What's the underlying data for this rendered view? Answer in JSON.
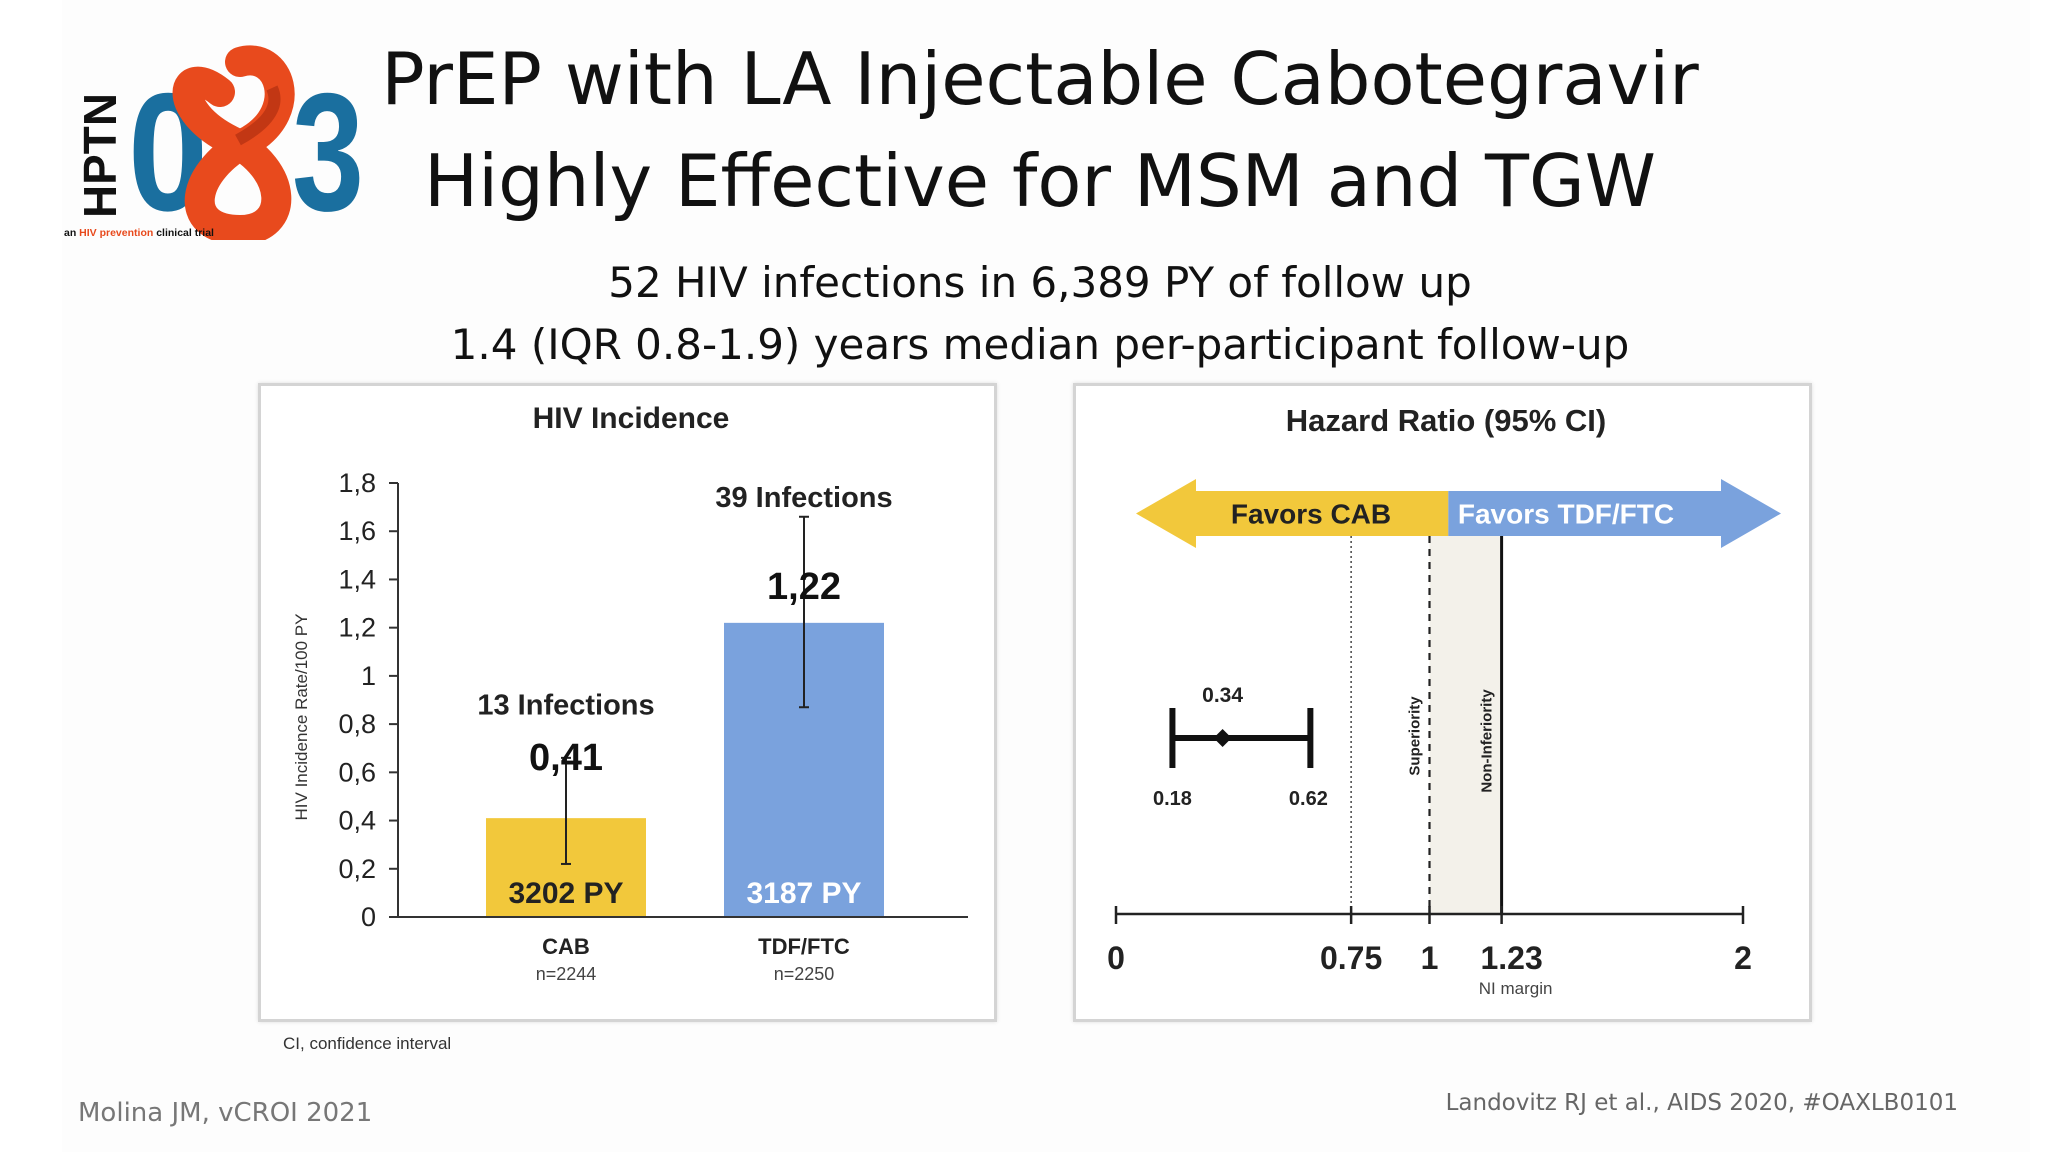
{
  "logo": {
    "text_hptn": "HPTN",
    "text_0": "0",
    "text_3": "3",
    "tagline_pre": "an ",
    "tagline_hiv": "HIV prevention",
    "tagline_post": " clinical trial"
  },
  "title": {
    "line1": "PrEP with LA Injectable Cabotegravir",
    "line2": "Highly Effective for MSM and TGW"
  },
  "subtitle": {
    "line1": "52 HIV infections in 6,389 PY of follow up",
    "line2": "1.4 (IQR 0.8-1.9) years median per-participant follow-up"
  },
  "colors": {
    "cab": "#f2c83b",
    "tdf": "#7aa2dd",
    "logo_blue": "#1a6f9f",
    "logo_orange": "#e84a1d"
  },
  "chart_data": [
    {
      "type": "bar",
      "title": "HIV Incidence",
      "ylabel": "HIV Incidence Rate/100 PY",
      "ylim": [
        0,
        1.8
      ],
      "yticks": [
        "0",
        "0,2",
        "0,4",
        "0,6",
        "0,8",
        "1",
        "1,2",
        "1,4",
        "1,6",
        "1,8"
      ],
      "categories": [
        {
          "label": "CAB",
          "n": "n=2244",
          "value": 0.41,
          "value_label": "0,41",
          "ci": [
            0.22,
            0.66
          ],
          "py_label": "3202 PY",
          "infections_label": "13 Infections"
        },
        {
          "label": "TDF/FTC",
          "n": "n=2250",
          "value": 1.22,
          "value_label": "1,22",
          "ci": [
            0.87,
            1.66
          ],
          "py_label": "3187 PY",
          "infections_label": "39 Infections"
        }
      ],
      "footnote": "CI, confidence interval"
    },
    {
      "type": "forest",
      "title": "Hazard Ratio (95% CI)",
      "xlim": [
        0,
        2
      ],
      "xticks": [
        "0",
        "0.75",
        "1",
        "1.23",
        "2"
      ],
      "arrow_left_label": "Favors CAB",
      "arrow_right_label": "Favors TDF/FTC",
      "estimate": 0.34,
      "estimate_label": "0.34",
      "ci": [
        0.18,
        0.62
      ],
      "ci_labels": [
        "0.18",
        "0.62"
      ],
      "ref_lines": [
        {
          "x": 0.75,
          "label": ""
        },
        {
          "x": 1,
          "label": "Superiority"
        },
        {
          "x": 1.23,
          "label": "Non-Inferiority",
          "sublabel": "NI margin"
        }
      ]
    }
  ],
  "credits": {
    "left": "Molina JM, vCROI 2021",
    "right": "Landovitz RJ et al., AIDS 2020, #OAXLB0101"
  }
}
